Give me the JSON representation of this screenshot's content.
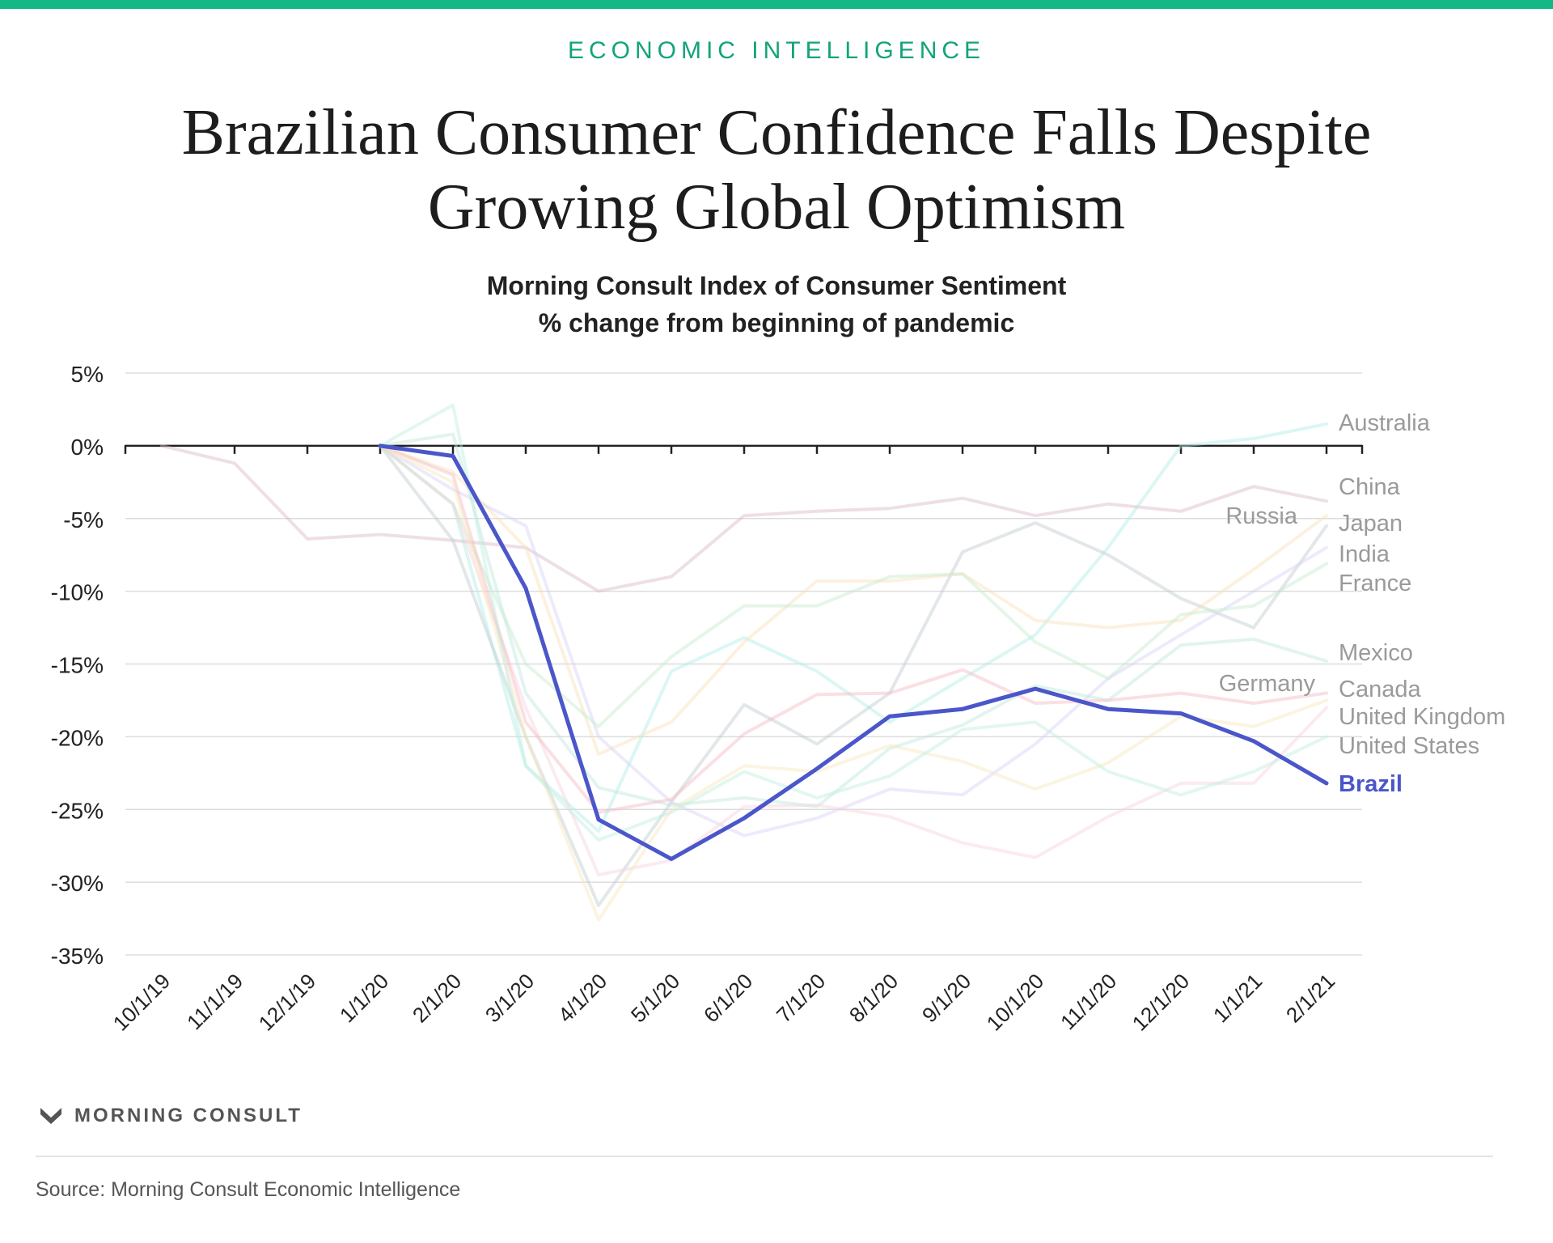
{
  "header": {
    "kicker": "ECONOMIC INTELLIGENCE",
    "title_line1": "Brazilian Consumer Confidence Falls Despite",
    "title_line2": "Growing Global Optimism",
    "subtitle_line1": "Morning Consult Index of Consumer Sentiment",
    "subtitle_line2": "% change from beginning of pandemic"
  },
  "brand": {
    "name": "MORNING CONSULT",
    "logo_icon": "morning-consult-logo-icon"
  },
  "footer": {
    "source": "Source: Morning Consult Economic Intelligence"
  },
  "colors": {
    "accent": "#12b886",
    "highlight": "#4a56c9",
    "muted_label": "#9a9a9a"
  },
  "chart_data": {
    "type": "line",
    "x": [
      "10/1/19",
      "11/1/19",
      "12/1/19",
      "1/1/20",
      "2/1/20",
      "3/1/20",
      "4/1/20",
      "5/1/20",
      "6/1/20",
      "7/1/20",
      "8/1/20",
      "9/1/20",
      "10/1/20",
      "11/1/20",
      "12/1/20",
      "1/1/21",
      "2/1/21"
    ],
    "y_ticks": [
      "5%",
      "0%",
      "-5%",
      "-10%",
      "-15%",
      "-20%",
      "-25%",
      "-30%",
      "-35%"
    ],
    "ylim": [
      -35,
      5
    ],
    "grid": true,
    "legend": "direct labels at line ends",
    "series": [
      {
        "name": "Australia",
        "label_y": 1.6,
        "color": "#aeeee6",
        "values": [
          null,
          null,
          null,
          0,
          -4,
          -22,
          -26.5,
          -15.5,
          -13.2,
          -15.5,
          -19,
          -16,
          -13,
          -7,
          0,
          0.5,
          1.5
        ]
      },
      {
        "name": "China",
        "label_y": -2.8,
        "color": "#d9b8c8",
        "values": [
          0,
          -1.2,
          -6.4,
          -6.1,
          -6.5,
          -7,
          -10,
          -9,
          -4.8,
          -4.5,
          -4.3,
          -3.6,
          -4.8,
          -4,
          -4.5,
          -2.8,
          -3.8
        ]
      },
      {
        "name": "Russia",
        "label_y": -4.8,
        "color": "#bfcad0",
        "values": [
          null,
          null,
          null,
          0,
          -6.5,
          -20,
          -31.6,
          -24.5,
          -17.8,
          -20.5,
          -17,
          -7.3,
          -5.3,
          -7.5,
          -10.5,
          -12.5,
          -5.5
        ]
      },
      {
        "name": "Japan",
        "label_y": -5.3,
        "color": "#f9dfb8",
        "values": [
          null,
          null,
          null,
          0,
          -1.8,
          -7,
          -21.2,
          -19,
          -13.5,
          -9.3,
          -9.3,
          -8.8,
          -12,
          -12.5,
          -12,
          -8.5,
          -4.8
        ]
      },
      {
        "name": "India",
        "label_y": -7.4,
        "color": "#d8d2f6",
        "values": [
          null,
          null,
          null,
          0,
          -3,
          -5.5,
          -20,
          -24.5,
          -26.8,
          -25.6,
          -23.6,
          -24,
          -20.5,
          -16,
          -13,
          -10,
          -7
        ]
      },
      {
        "name": "France",
        "label_y": -9.4,
        "color": "#c6eccb",
        "values": [
          null,
          null,
          null,
          0,
          -4,
          -15,
          -19.3,
          -14.5,
          -11,
          -11,
          -9,
          -8.8,
          -13.5,
          -16,
          -11.6,
          -11,
          -8.1
        ]
      },
      {
        "name": "Mexico",
        "label_y": -14.2,
        "color": "#bfe6dc",
        "values": [
          null,
          null,
          null,
          0,
          0.8,
          -17,
          -23.5,
          -24.7,
          -24.2,
          -24.8,
          -20.8,
          -19.2,
          -16.5,
          -17.5,
          -13.7,
          -13.3,
          -14.8
        ]
      },
      {
        "name": "Germany",
        "label_y": -16.3,
        "color": "#f6d2dd",
        "values": [
          null,
          null,
          null,
          0,
          -4,
          -18,
          -29.5,
          -28.5,
          -24.8,
          -24.7,
          -25.5,
          -27.3,
          -28.3,
          -25.5,
          -23.2,
          -23.2,
          -18
        ]
      },
      {
        "name": "Canada",
        "label_y": -16.7,
        "color": "#f4b8c0",
        "values": [
          null,
          null,
          null,
          0,
          -2,
          -19,
          -25.2,
          -24.3,
          -19.8,
          -17.1,
          -17,
          -15.4,
          -17.7,
          -17.5,
          -17,
          -17.7,
          -17
        ]
      },
      {
        "name": "United Kingdom",
        "label_y": -18.6,
        "color": "#f6e6bd",
        "values": [
          null,
          null,
          null,
          0,
          -2.5,
          -20,
          -32.6,
          -25,
          -22,
          -22.4,
          -20.6,
          -21.7,
          -23.6,
          -21.8,
          -18.6,
          -19.3,
          -17.5
        ]
      },
      {
        "name": "United States",
        "label_y": -20.6,
        "color": "#bfeede",
        "values": [
          null,
          null,
          null,
          0,
          2.8,
          -22,
          -27.1,
          -25.2,
          -22.4,
          -24.2,
          -22.7,
          -19.5,
          -19,
          -22.4,
          -24,
          -22.4,
          -20
        ]
      },
      {
        "name": "Brazil",
        "label_y": -23.2,
        "color": "#4a56c9",
        "highlight": true,
        "values": [
          null,
          null,
          null,
          0,
          -0.7,
          -9.8,
          -25.7,
          -28.4,
          -25.6,
          -22.2,
          -18.6,
          -18.1,
          -16.7,
          -18.1,
          -18.4,
          -20.3,
          -23.2
        ]
      }
    ]
  }
}
